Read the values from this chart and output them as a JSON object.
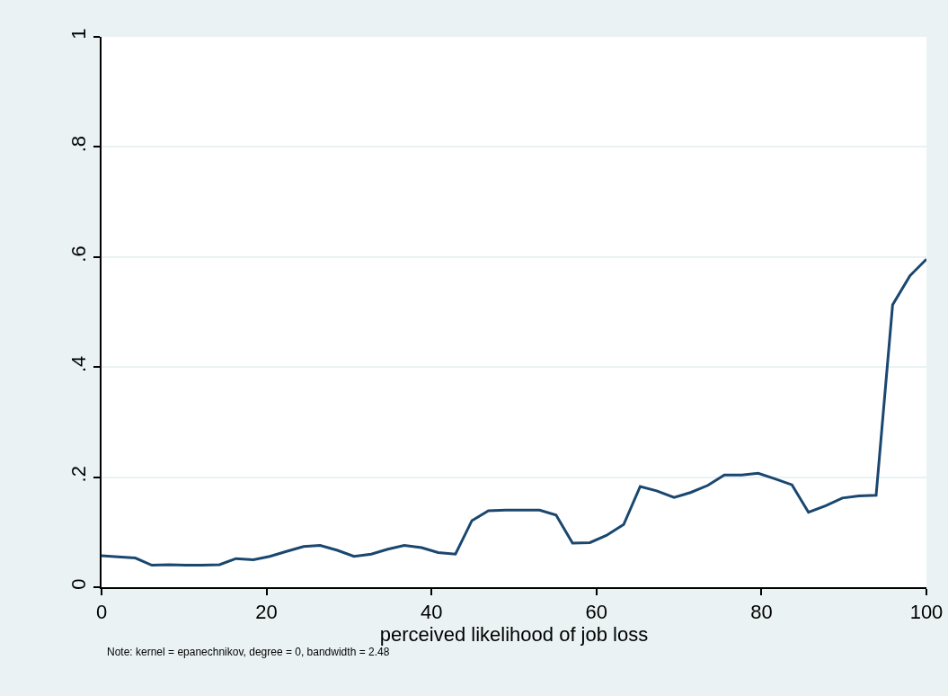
{
  "chart_data": {
    "type": "line",
    "xlabel": "perceived likelihood of job loss",
    "annotations": [
      "Note: kernel = epanechnikov, degree = 0, bandwidth = 2.48"
    ],
    "x": [
      0,
      2,
      4.1,
      6.1,
      8.2,
      10.2,
      12.2,
      14.3,
      16.3,
      18.4,
      20.4,
      22.4,
      24.5,
      26.5,
      28.6,
      30.6,
      32.7,
      34.7,
      36.7,
      38.8,
      40.8,
      42.9,
      44.9,
      46.9,
      49,
      51,
      53.1,
      55.1,
      57.1,
      59.2,
      61.2,
      63.3,
      65.3,
      67.3,
      69.4,
      71.4,
      73.5,
      75.5,
      77.6,
      79.6,
      81.6,
      83.7,
      85.7,
      87.8,
      89.8,
      91.8,
      93.9,
      95.9,
      98,
      100
    ],
    "series": [
      {
        "color": "#1a476f",
        "values": [
          0.057,
          0.055,
          0.053,
          0.04,
          0.041,
          0.04,
          0.04,
          0.041,
          0.052,
          0.05,
          0.056,
          0.065,
          0.074,
          0.076,
          0.067,
          0.056,
          0.06,
          0.069,
          0.076,
          0.072,
          0.063,
          0.06,
          0.121,
          0.139,
          0.14,
          0.14,
          0.14,
          0.131,
          0.08,
          0.081,
          0.094,
          0.114,
          0.183,
          0.175,
          0.163,
          0.172,
          0.185,
          0.204,
          0.204,
          0.207,
          0.197,
          0.186,
          0.136,
          0.148,
          0.162,
          0.166,
          0.167,
          0.513,
          0.566,
          0.596
        ]
      }
    ],
    "xlim": [
      0,
      100
    ],
    "ylim": [
      0,
      1
    ],
    "xticks": [
      0,
      20,
      40,
      60,
      80,
      100
    ],
    "yticks": [
      0,
      {
        "value": 0.2,
        "label": ".2"
      },
      {
        "value": 0.4,
        "label": ".4"
      },
      {
        "value": 0.6,
        "label": ".6"
      },
      {
        "value": 0.8,
        "label": ".8"
      },
      1
    ],
    "grid": "y",
    "line_style": "solid"
  }
}
